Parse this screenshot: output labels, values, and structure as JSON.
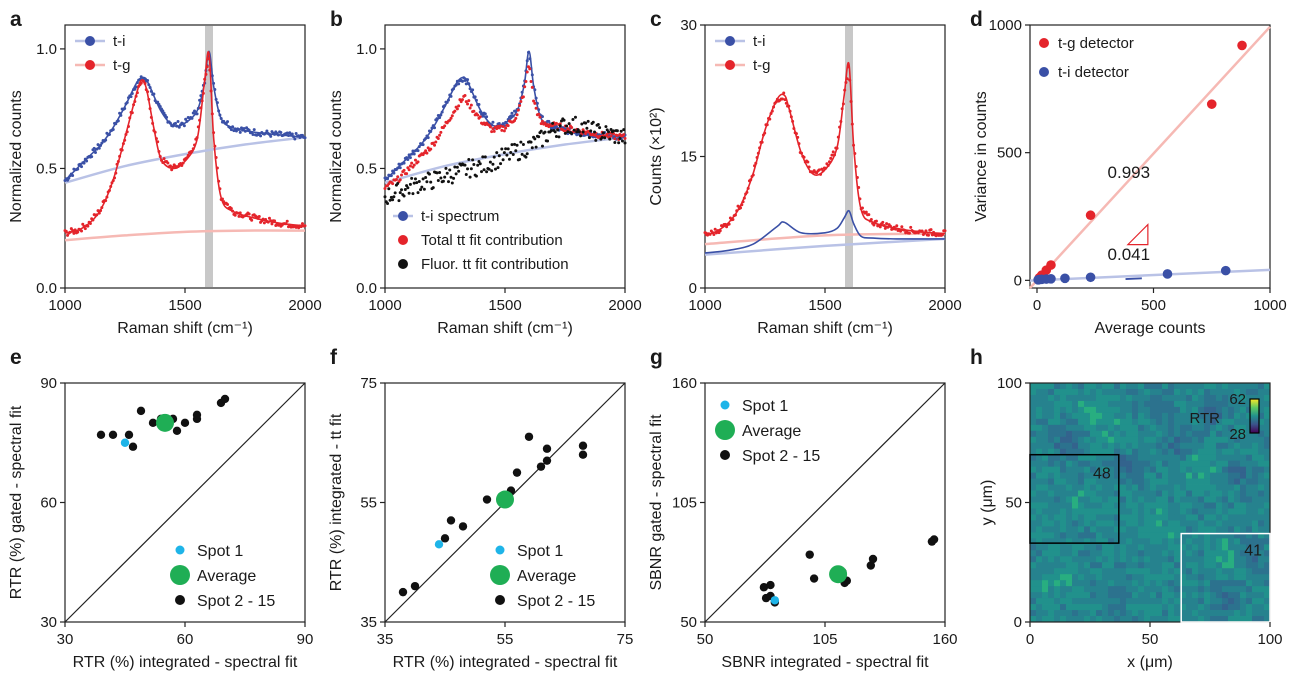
{
  "colors": {
    "blue": "#3a50a6",
    "red": "#e4242b",
    "blue_light": "#b9c2e6",
    "red_light": "#f6b9b4",
    "green": "#1fae55",
    "cyan": "#1eb4e8",
    "black": "#111111",
    "gray_band": "#c8c8c8"
  },
  "chart_data": [
    {
      "panel": "a",
      "type": "line",
      "xlabel": "Raman shift (cm⁻¹)",
      "ylabel": "Normalized counts",
      "xlim": [
        1000,
        2000
      ],
      "ylim": [
        0,
        1.1
      ],
      "xticks": [
        1000,
        1500,
        2000
      ],
      "xtick_labels": [
        "1000",
        "1500",
        "2000"
      ],
      "yticks": [
        0,
        0.5,
        1.0
      ],
      "ytick_labels": [
        "0.0",
        "0.5",
        "1.0"
      ],
      "highlight_band_x": 1600,
      "legend": [
        {
          "name": "t-i",
          "color": "blue"
        },
        {
          "name": "t-g",
          "color": "red"
        }
      ],
      "series": [
        {
          "name": "t-i",
          "color": "blue",
          "style": "line+points",
          "x": [
            1000,
            1050,
            1100,
            1150,
            1200,
            1250,
            1300,
            1330,
            1350,
            1400,
            1450,
            1500,
            1550,
            1580,
            1600,
            1620,
            1650,
            1700,
            1800,
            1900,
            2000
          ],
          "y": [
            0.45,
            0.5,
            0.55,
            0.6,
            0.67,
            0.76,
            0.86,
            0.88,
            0.85,
            0.74,
            0.68,
            0.69,
            0.74,
            0.85,
            0.99,
            0.84,
            0.71,
            0.67,
            0.65,
            0.64,
            0.63
          ]
        },
        {
          "name": "t-g",
          "color": "red",
          "style": "line+points",
          "x": [
            1000,
            1050,
            1100,
            1150,
            1200,
            1250,
            1300,
            1320,
            1340,
            1370,
            1400,
            1450,
            1500,
            1550,
            1580,
            1600,
            1620,
            1650,
            1700,
            1800,
            1900,
            2000
          ],
          "y": [
            0.23,
            0.24,
            0.27,
            0.33,
            0.45,
            0.63,
            0.82,
            0.87,
            0.83,
            0.67,
            0.54,
            0.5,
            0.53,
            0.62,
            0.85,
            0.98,
            0.62,
            0.38,
            0.32,
            0.29,
            0.27,
            0.26
          ]
        },
        {
          "name": "",
          "color": "blue_light",
          "style": "smooth",
          "x": [
            1000,
            1250,
            1500,
            1750,
            2000
          ],
          "y": [
            0.44,
            0.51,
            0.56,
            0.6,
            0.63
          ]
        },
        {
          "name": "",
          "color": "red_light",
          "style": "smooth",
          "x": [
            1000,
            1250,
            1500,
            1750,
            2000
          ],
          "y": [
            0.2,
            0.22,
            0.235,
            0.24,
            0.24
          ]
        }
      ]
    },
    {
      "panel": "b",
      "type": "scatter",
      "xlabel": "Raman shift (cm⁻¹)",
      "ylabel": "Normalized counts",
      "xlim": [
        1000,
        2000
      ],
      "ylim": [
        0,
        1.1
      ],
      "xticks": [
        1000,
        1500,
        2000
      ],
      "xtick_labels": [
        "1000",
        "1500",
        "2000"
      ],
      "yticks": [
        0,
        0.5,
        1.0
      ],
      "ytick_labels": [
        "0.0",
        "0.5",
        "1.0"
      ],
      "legend": [
        {
          "name": "t-i spectrum",
          "color": "blue"
        },
        {
          "name": "Total tt fit contribution",
          "color": "red"
        },
        {
          "name": "Fluor. tt fit contribution",
          "color": "black"
        }
      ],
      "series": [
        {
          "name": "t-i spectrum",
          "color": "blue",
          "style": "line+points",
          "x": [
            1000,
            1050,
            1100,
            1150,
            1200,
            1250,
            1300,
            1330,
            1350,
            1400,
            1450,
            1500,
            1550,
            1580,
            1600,
            1620,
            1650,
            1700,
            1800,
            1900,
            2000
          ],
          "y": [
            0.45,
            0.5,
            0.55,
            0.6,
            0.67,
            0.76,
            0.86,
            0.88,
            0.85,
            0.74,
            0.68,
            0.69,
            0.74,
            0.85,
            0.99,
            0.84,
            0.71,
            0.67,
            0.65,
            0.64,
            0.63
          ]
        },
        {
          "name": "Total tt fit contribution",
          "color": "red",
          "style": "points",
          "x": [
            1000,
            1050,
            1100,
            1150,
            1200,
            1250,
            1300,
            1330,
            1350,
            1400,
            1450,
            1500,
            1550,
            1580,
            1600,
            1620,
            1650,
            1700,
            1800,
            1900,
            2000
          ],
          "y": [
            0.42,
            0.45,
            0.5,
            0.55,
            0.6,
            0.68,
            0.76,
            0.8,
            0.77,
            0.7,
            0.66,
            0.67,
            0.72,
            0.82,
            0.94,
            0.78,
            0.69,
            0.68,
            0.66,
            0.64,
            0.63
          ]
        },
        {
          "name": "Fluor. tt fit contribution",
          "color": "black",
          "style": "points",
          "x": [
            1000,
            1050,
            1100,
            1150,
            1200,
            1250,
            1300,
            1350,
            1400,
            1450,
            1500,
            1550,
            1600,
            1650,
            1700,
            1750,
            1800,
            1850,
            1900,
            2000
          ],
          "y": [
            0.38,
            0.4,
            0.42,
            0.44,
            0.45,
            0.47,
            0.48,
            0.5,
            0.51,
            0.53,
            0.55,
            0.57,
            0.59,
            0.62,
            0.66,
            0.68,
            0.68,
            0.66,
            0.65,
            0.63
          ]
        },
        {
          "name": "",
          "color": "blue_light",
          "style": "smooth",
          "x": [
            1000,
            1250,
            1500,
            1750,
            2000
          ],
          "y": [
            0.44,
            0.51,
            0.56,
            0.6,
            0.63
          ]
        }
      ]
    },
    {
      "panel": "c",
      "type": "line",
      "xlabel": "Raman shift (cm⁻¹)",
      "ylabel": "Counts (×10²)",
      "xlim": [
        1000,
        2000
      ],
      "ylim": [
        0,
        30
      ],
      "xticks": [
        1000,
        1500,
        2000
      ],
      "xtick_labels": [
        "1000",
        "1500",
        "2000"
      ],
      "yticks": [
        0,
        15,
        30
      ],
      "ytick_labels": [
        "0",
        "15",
        "30"
      ],
      "highlight_band_x": 1600,
      "legend": [
        {
          "name": "t-i",
          "color": "blue"
        },
        {
          "name": "t-g",
          "color": "red"
        }
      ],
      "series": [
        {
          "name": "t-g",
          "color": "red",
          "style": "line+points",
          "x": [
            1000,
            1050,
            1100,
            1150,
            1200,
            1250,
            1300,
            1330,
            1350,
            1400,
            1450,
            1500,
            1550,
            1580,
            1600,
            1620,
            1650,
            1700,
            1800,
            1900,
            2000
          ],
          "y": [
            6,
            6.5,
            7.5,
            9.5,
            13,
            18,
            21.5,
            22,
            20.5,
            15.5,
            13,
            13.5,
            16,
            22,
            25.5,
            16,
            9,
            7.5,
            6.8,
            6.4,
            6.2
          ]
        },
        {
          "name": "t-i",
          "color": "blue",
          "style": "line",
          "x": [
            1000,
            1100,
            1200,
            1300,
            1330,
            1400,
            1500,
            1550,
            1580,
            1600,
            1620,
            1650,
            1700,
            1800,
            2000
          ],
          "y": [
            4,
            4.3,
            5,
            7,
            7.5,
            6.3,
            6.3,
            6.8,
            8,
            8.8,
            7.3,
            5.9,
            5.7,
            5.6,
            5.6
          ]
        },
        {
          "name": "",
          "color": "blue_light",
          "style": "smooth",
          "x": [
            1000,
            1500,
            2000
          ],
          "y": [
            3.8,
            4.8,
            5.6
          ]
        },
        {
          "name": "",
          "color": "red_light",
          "style": "smooth",
          "x": [
            1000,
            1500,
            2000
          ],
          "y": [
            5,
            6,
            6.2
          ]
        }
      ]
    },
    {
      "panel": "d",
      "type": "scatter",
      "xlabel": "Average counts",
      "ylabel": "Variance in counts",
      "xlim": [
        -30,
        1000
      ],
      "ylim": [
        -30,
        1000
      ],
      "xticks": [
        0,
        500,
        1000
      ],
      "xtick_labels": [
        "0",
        "500",
        "1000"
      ],
      "yticks": [
        0,
        500,
        1000
      ],
      "ytick_labels": [
        "0",
        "500",
        "1000"
      ],
      "legend": [
        {
          "name": "t-g detector",
          "color": "red"
        },
        {
          "name": "t-i detector",
          "color": "blue"
        }
      ],
      "annotations": [
        {
          "text": "0.993",
          "color": "red",
          "x": 380,
          "y": 400
        },
        {
          "text": "0.041",
          "color": "blue",
          "x": 380,
          "y": 80
        }
      ],
      "series": [
        {
          "name": "t-g detector",
          "color": "red",
          "x": [
            10,
            20,
            40,
            60,
            230,
            750,
            880
          ],
          "y": [
            10,
            20,
            40,
            60,
            255,
            690,
            920
          ]
        },
        {
          "name": "t-i detector",
          "color": "blue",
          "x": [
            5,
            10,
            20,
            40,
            60,
            120,
            230,
            560,
            810
          ],
          "y": [
            2,
            3,
            4,
            5,
            6,
            8,
            12,
            25,
            38
          ]
        },
        {
          "name": "",
          "color": "red_light",
          "style": "fit",
          "x": [
            -30,
            1000
          ],
          "y": [
            -30,
            993
          ]
        },
        {
          "name": "",
          "color": "blue_light",
          "style": "fit",
          "x": [
            -30,
            1000
          ],
          "y": [
            -1,
            41
          ]
        }
      ]
    },
    {
      "panel": "e",
      "type": "scatter",
      "xlabel": "RTR (%) integrated - spectral fit",
      "ylabel": "RTR (%) gated - spectral fit",
      "xlim": [
        30,
        90
      ],
      "ylim": [
        30,
        90
      ],
      "xticks": [
        30,
        60,
        90
      ],
      "xtick_labels": [
        "30",
        "60",
        "90"
      ],
      "yticks": [
        30,
        60,
        90
      ],
      "ytick_labels": [
        "30",
        "60",
        "90"
      ],
      "diagonal": true,
      "legend": [
        {
          "name": "Spot 1",
          "color": "cyan"
        },
        {
          "name": "Average",
          "color": "green"
        },
        {
          "name": "Spot 2 - 15",
          "color": "black"
        }
      ],
      "series": [
        {
          "name": "Spot 1",
          "color": "cyan",
          "x": [
            45
          ],
          "y": [
            75
          ]
        },
        {
          "name": "Average",
          "color": "green",
          "x": [
            55
          ],
          "y": [
            80
          ],
          "large": true
        },
        {
          "name": "Spot 2 - 15",
          "color": "black",
          "x": [
            39,
            42,
            46,
            47,
            49,
            52,
            54,
            57,
            58,
            60,
            63,
            63,
            69,
            70
          ],
          "y": [
            77,
            77,
            77,
            74,
            83,
            80,
            81,
            81,
            78,
            80,
            81,
            82,
            85,
            86
          ]
        }
      ]
    },
    {
      "panel": "f",
      "type": "scatter",
      "xlabel": "RTR (%) integrated - spectral fit",
      "ylabel": "RTR (%) integrated - tt fit",
      "xlim": [
        35,
        75
      ],
      "ylim": [
        35,
        75
      ],
      "xticks": [
        35,
        55,
        75
      ],
      "xtick_labels": [
        "35",
        "55",
        "75"
      ],
      "yticks": [
        35,
        55,
        75
      ],
      "ytick_labels": [
        "35",
        "55",
        "75"
      ],
      "diagonal": true,
      "legend": [
        {
          "name": "Spot 1",
          "color": "cyan"
        },
        {
          "name": "Average",
          "color": "green"
        },
        {
          "name": "Spot 2 - 15",
          "color": "black"
        }
      ],
      "series": [
        {
          "name": "Spot 1",
          "color": "cyan",
          "x": [
            44
          ],
          "y": [
            48
          ]
        },
        {
          "name": "Average",
          "color": "green",
          "x": [
            55
          ],
          "y": [
            55.5
          ],
          "large": true
        },
        {
          "name": "Spot 2 - 15",
          "color": "black",
          "x": [
            38,
            40,
            45,
            46,
            48,
            52,
            56,
            57,
            59,
            61,
            62,
            62,
            68,
            68
          ],
          "y": [
            40,
            41,
            49,
            52,
            51,
            55.5,
            57,
            60,
            66,
            61,
            62,
            64,
            64.5,
            63
          ]
        }
      ]
    },
    {
      "panel": "g",
      "type": "scatter",
      "xlabel": "SBNR integrated - spectral fit",
      "ylabel": "SBNR gated - spectral fit",
      "xlim": [
        50,
        160
      ],
      "ylim": [
        50,
        160
      ],
      "xticks": [
        50,
        105,
        160
      ],
      "xtick_labels": [
        "50",
        "105",
        "160"
      ],
      "yticks": [
        50,
        105,
        160
      ],
      "ytick_labels": [
        "50",
        "105",
        "160"
      ],
      "diagonal": true,
      "legend": [
        {
          "name": "Spot 1",
          "color": "cyan"
        },
        {
          "name": "Average",
          "color": "green"
        },
        {
          "name": "Spot 2 - 15",
          "color": "black"
        }
      ],
      "series": [
        {
          "name": "Spot 1",
          "color": "cyan",
          "x": [
            82
          ],
          "y": [
            60
          ]
        },
        {
          "name": "Average",
          "color": "green",
          "x": [
            111
          ],
          "y": [
            72
          ],
          "large": true
        },
        {
          "name": "Spot 2 - 15",
          "color": "black",
          "x": [
            77,
            78,
            80,
            80,
            82,
            98,
            100,
            113,
            114,
            115,
            126,
            127,
            154,
            155
          ],
          "y": [
            66,
            61,
            67,
            62,
            59,
            81,
            70,
            73,
            68,
            69,
            76,
            79,
            87,
            88
          ]
        }
      ]
    },
    {
      "panel": "h",
      "type": "heatmap",
      "xlabel": "x (μm)",
      "ylabel": "y (μm)",
      "xlim": [
        0,
        100
      ],
      "ylim": [
        0,
        100
      ],
      "xticks": [
        0,
        50,
        100
      ],
      "xtick_labels": [
        "0",
        "50",
        "100"
      ],
      "yticks": [
        0,
        50,
        100
      ],
      "ytick_labels": [
        "0",
        "50",
        "100"
      ],
      "colorbar": {
        "label": "RTR",
        "max_label": "62",
        "min_label": "28"
      },
      "regions": [
        {
          "label": "48",
          "color": "#000000",
          "x0": 0,
          "x1": 37,
          "y0": 33,
          "y1": 70
        },
        {
          "label": "41",
          "color": "#ffffff",
          "x0": 63,
          "x1": 100,
          "y0": 0,
          "y1": 37
        }
      ]
    }
  ],
  "panel_letters": [
    "a",
    "b",
    "c",
    "d",
    "e",
    "f",
    "g",
    "h"
  ]
}
